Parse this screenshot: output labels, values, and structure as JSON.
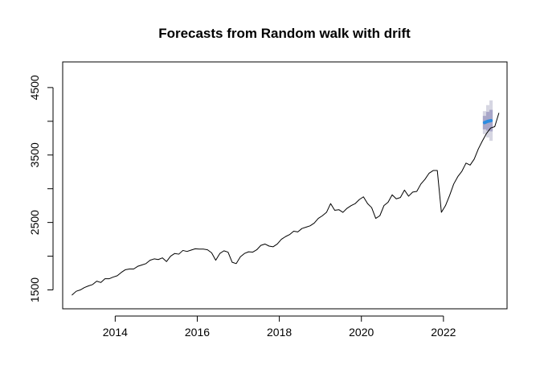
{
  "chart_data": {
    "type": "line",
    "title": "Forecasts from Random walk with drift",
    "xlabel": "",
    "ylabel": "",
    "xlim": [
      2012.72,
      2023.55
    ],
    "ylim": [
      1220,
      4880
    ],
    "x_ticks": [
      2014,
      2016,
      2018,
      2020,
      2022
    ],
    "x_tick_labels": [
      "2014",
      "2016",
      "2018",
      "2020",
      "2022"
    ],
    "y_ticks": [
      1500,
      2000,
      2500,
      3000,
      3500,
      4000,
      4500
    ],
    "y_tick_labels": [
      "1500",
      "",
      "2500",
      "",
      "3500",
      "",
      "4500"
    ],
    "grid": false,
    "series": [
      {
        "role": "observed",
        "color": "#000000",
        "points": [
          [
            2012.95,
            1425
          ],
          [
            2013.05,
            1480
          ],
          [
            2013.15,
            1500
          ],
          [
            2013.25,
            1535
          ],
          [
            2013.35,
            1560
          ],
          [
            2013.45,
            1580
          ],
          [
            2013.55,
            1630
          ],
          [
            2013.65,
            1610
          ],
          [
            2013.75,
            1665
          ],
          [
            2013.85,
            1665
          ],
          [
            2013.95,
            1690
          ],
          [
            2014.05,
            1710
          ],
          [
            2014.15,
            1760
          ],
          [
            2014.25,
            1800
          ],
          [
            2014.35,
            1810
          ],
          [
            2014.45,
            1810
          ],
          [
            2014.55,
            1850
          ],
          [
            2014.65,
            1870
          ],
          [
            2014.75,
            1890
          ],
          [
            2014.85,
            1940
          ],
          [
            2014.95,
            1960
          ],
          [
            2015.05,
            1950
          ],
          [
            2015.15,
            1975
          ],
          [
            2015.25,
            1920
          ],
          [
            2015.35,
            2000
          ],
          [
            2015.45,
            2040
          ],
          [
            2015.55,
            2030
          ],
          [
            2015.65,
            2085
          ],
          [
            2015.75,
            2070
          ],
          [
            2015.85,
            2090
          ],
          [
            2015.95,
            2110
          ],
          [
            2016.05,
            2105
          ],
          [
            2016.15,
            2105
          ],
          [
            2016.25,
            2095
          ],
          [
            2016.35,
            2050
          ],
          [
            2016.45,
            1940
          ],
          [
            2016.55,
            2040
          ],
          [
            2016.65,
            2080
          ],
          [
            2016.75,
            2060
          ],
          [
            2016.85,
            1910
          ],
          [
            2016.95,
            1890
          ],
          [
            2017.05,
            1990
          ],
          [
            2017.15,
            2040
          ],
          [
            2017.25,
            2065
          ],
          [
            2017.35,
            2060
          ],
          [
            2017.45,
            2095
          ],
          [
            2017.55,
            2160
          ],
          [
            2017.65,
            2180
          ],
          [
            2017.75,
            2150
          ],
          [
            2017.85,
            2140
          ],
          [
            2017.95,
            2180
          ],
          [
            2018.05,
            2250
          ],
          [
            2018.15,
            2290
          ],
          [
            2018.25,
            2320
          ],
          [
            2018.35,
            2370
          ],
          [
            2018.45,
            2360
          ],
          [
            2018.55,
            2410
          ],
          [
            2018.65,
            2430
          ],
          [
            2018.75,
            2450
          ],
          [
            2018.85,
            2490
          ],
          [
            2018.95,
            2560
          ],
          [
            2019.05,
            2600
          ],
          [
            2019.15,
            2650
          ],
          [
            2019.25,
            2780
          ],
          [
            2019.35,
            2680
          ],
          [
            2019.45,
            2690
          ],
          [
            2019.55,
            2650
          ],
          [
            2019.65,
            2710
          ],
          [
            2019.75,
            2750
          ],
          [
            2019.85,
            2780
          ],
          [
            2019.95,
            2840
          ],
          [
            2020.05,
            2880
          ],
          [
            2020.15,
            2780
          ],
          [
            2020.25,
            2720
          ],
          [
            2020.35,
            2560
          ],
          [
            2020.45,
            2600
          ],
          [
            2020.55,
            2750
          ],
          [
            2020.65,
            2800
          ],
          [
            2020.75,
            2910
          ],
          [
            2020.85,
            2850
          ],
          [
            2020.95,
            2870
          ],
          [
            2021.05,
            2980
          ],
          [
            2021.15,
            2890
          ],
          [
            2021.25,
            2950
          ],
          [
            2021.35,
            2960
          ],
          [
            2021.45,
            3070
          ],
          [
            2021.55,
            3140
          ],
          [
            2021.65,
            3230
          ],
          [
            2021.75,
            3270
          ],
          [
            2021.85,
            3270
          ],
          [
            2021.95,
            2650
          ],
          [
            2022.05,
            2750
          ],
          [
            2022.15,
            2900
          ],
          [
            2022.25,
            3070
          ],
          [
            2022.35,
            3180
          ],
          [
            2022.45,
            3260
          ],
          [
            2022.55,
            3380
          ],
          [
            2022.65,
            3350
          ],
          [
            2022.75,
            3440
          ],
          [
            2022.85,
            3590
          ],
          [
            2022.95,
            3710
          ],
          [
            2023.05,
            3820
          ],
          [
            2023.15,
            3900
          ],
          [
            2023.25,
            3920
          ],
          [
            2023.35,
            4120
          ]
        ]
      },
      {
        "role": "forecast",
        "color": "#2b8ce0",
        "points": [
          [
            2023.0,
            3980
          ],
          [
            2023.08,
            4000
          ],
          [
            2023.16,
            4010
          ]
        ]
      }
    ],
    "prediction_intervals": [
      {
        "level": 80,
        "color": "#a8a6c8",
        "x": [
          2023.0,
          2023.08,
          2023.16
        ],
        "lower": [
          3880,
          3860,
          3850
        ],
        "upper": [
          4080,
          4140,
          4170
        ]
      },
      {
        "level": 95,
        "color": "#d6d6e2",
        "x": [
          2023.0,
          2023.08,
          2023.16
        ],
        "lower": [
          3810,
          3760,
          3710
        ],
        "upper": [
          4150,
          4240,
          4310
        ]
      }
    ]
  }
}
